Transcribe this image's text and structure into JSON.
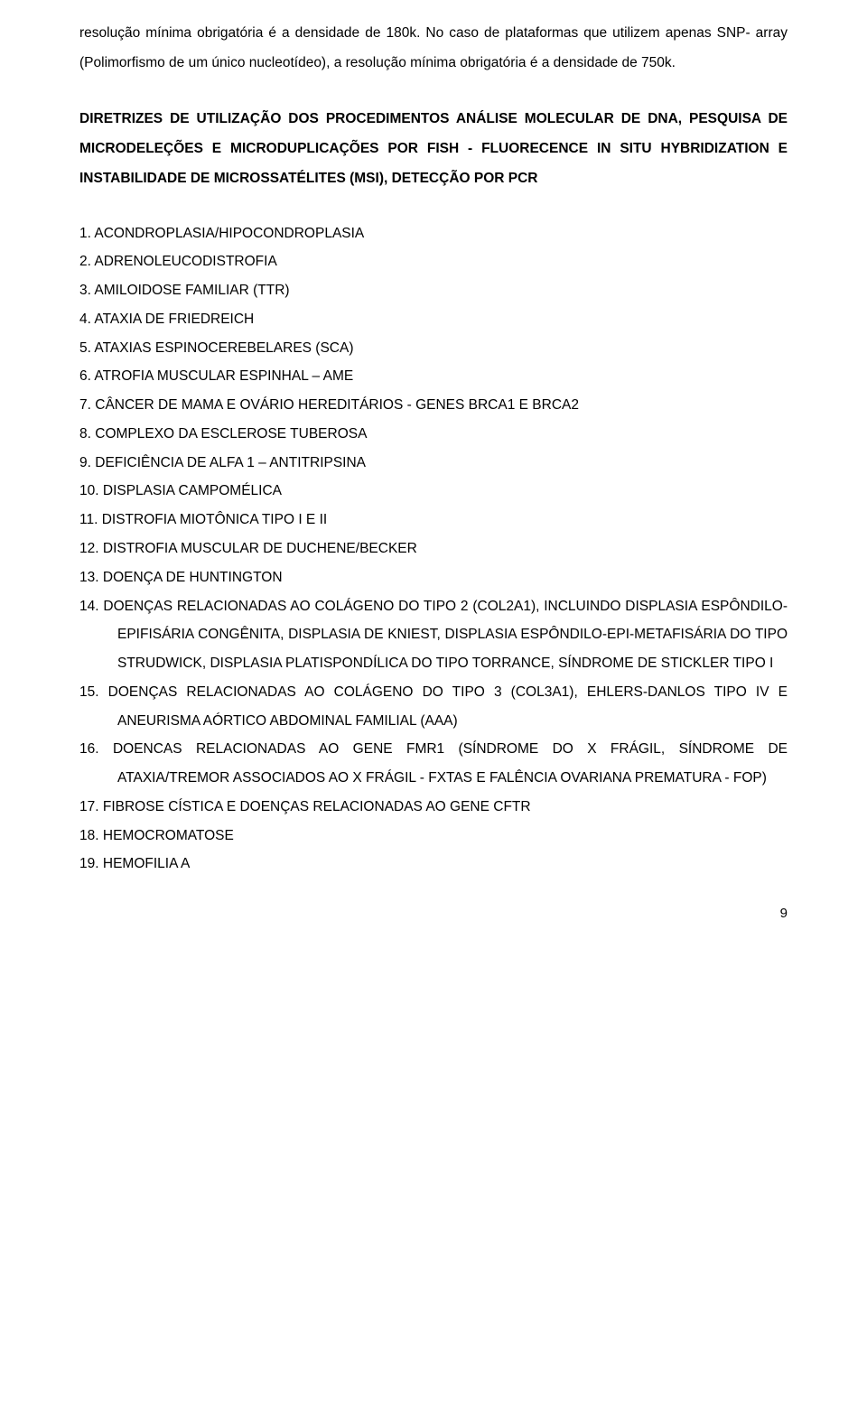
{
  "intro": "resolução mínima obrigatória é a densidade de 180k. No caso de plataformas que utilizem apenas SNP- array (Polimorfismo de um único nucleotídeo), a resolução mínima obrigatória é a densidade de 750k.",
  "heading": "DIRETRIZES DE UTILIZAÇÃO DOS PROCEDIMENTOS ANÁLISE MOLECULAR DE DNA, PESQUISA DE MICRODELEÇÕES E MICRODUPLICAÇÕES POR FISH - FLUORECENCE IN SITU HYBRIDIZATION E INSTABILIDADE DE MICROSSATÉLITES (MSI), DETECÇÃO POR PCR",
  "items": [
    "ACONDROPLASIA/HIPOCONDROPLASIA",
    "ADRENOLEUCODISTROFIA",
    "AMILOIDOSE FAMILIAR (TTR)",
    "ATAXIA DE FRIEDREICH",
    "ATAXIAS ESPINOCEREBELARES (SCA)",
    "ATROFIA MUSCULAR ESPINHAL – AME",
    "CÂNCER DE MAMA E OVÁRIO HEREDITÁRIOS - GENES BRCA1 E BRCA2",
    "COMPLEXO DA ESCLEROSE TUBEROSA",
    "DEFICIÊNCIA DE ALFA 1 – ANTITRIPSINA",
    "DISPLASIA CAMPOMÉLICA",
    "DISTROFIA MIOTÔNICA TIPO I E II",
    "DISTROFIA MUSCULAR DE DUCHENE/BECKER",
    "DOENÇA DE HUNTINGTON",
    "DOENÇAS RELACIONADAS AO COLÁGENO DO TIPO 2 (COL2A1), INCLUINDO  DISPLASIA ESPÔNDILO-EPIFISÁRIA CONGÊNITA, DISPLASIA DE KNIEST, DISPLASIA ESPÔNDILO-EPI-METAFISÁRIA DO TIPO STRUDWICK, DISPLASIA PLATISPONDÍLICA DO TIPO TORRANCE, SÍNDROME DE STICKLER TIPO I",
    "DOENÇAS RELACIONADAS AO COLÁGENO DO TIPO 3 (COL3A1),  EHLERS-DANLOS TIPO IV E ANEURISMA AÓRTICO ABDOMINAL FAMILIAL (AAA)",
    "DOENCAS RELACIONADAS AO GENE FMR1 (SÍNDROME DO X FRÁGIL, SÍNDROME DE ATAXIA/TREMOR ASSOCIADOS AO X FRÁGIL - FXTAS E FALÊNCIA OVARIANA PREMATURA - FOP)",
    "FIBROSE CÍSTICA E DOENÇAS RELACIONADAS AO GENE CFTR",
    "HEMOCROMATOSE",
    "HEMOFILIA A"
  ],
  "pageNumber": "9"
}
